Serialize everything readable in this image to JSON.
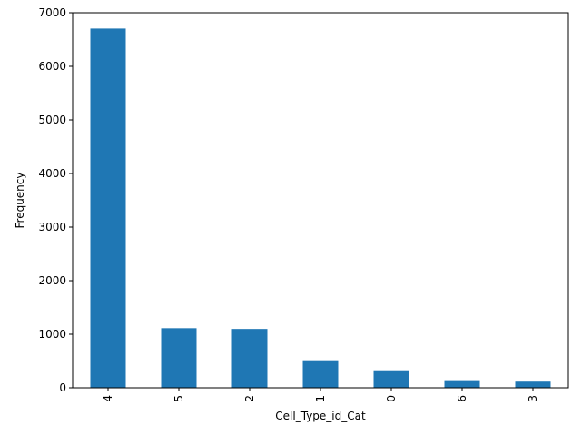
{
  "chart_data": {
    "type": "bar",
    "title": "",
    "xlabel": "Cell_Type_id_Cat",
    "ylabel": "Frequency",
    "categories": [
      "4",
      "5",
      "2",
      "1",
      "0",
      "6",
      "3"
    ],
    "values": [
      6705,
      1113,
      1099,
      514,
      327,
      142,
      115
    ],
    "ylim": [
      0,
      7000
    ],
    "yticks": [
      0,
      1000,
      2000,
      3000,
      4000,
      5000,
      6000,
      7000
    ],
    "grid": false,
    "bar_color": "#1f77b4",
    "x_tick_rotation": "vertical"
  }
}
